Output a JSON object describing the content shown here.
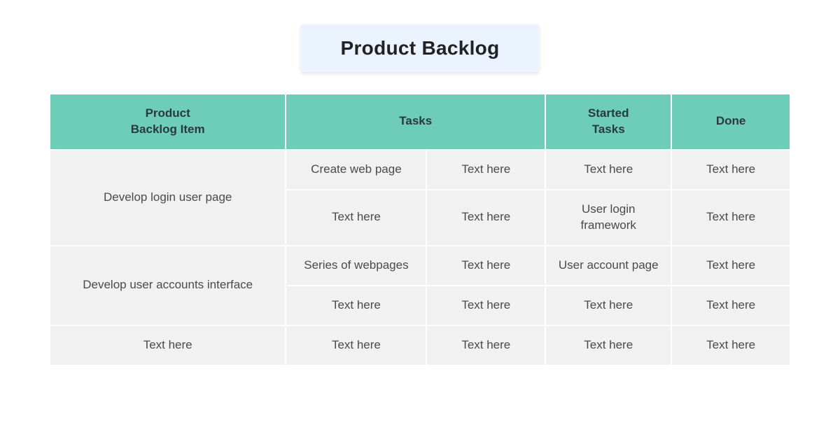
{
  "title": "Product Backlog",
  "colors": {
    "title_bg": "#eaf3ff",
    "title_text": "#222222",
    "header_bg": "#6dcdb8",
    "header_text": "#2a3a3a",
    "cell_bg": "#f1f1f1",
    "cell_text": "#4a4a4a",
    "page_bg": "#ffffff"
  },
  "typography": {
    "title_fontsize": 28,
    "header_fontsize": 17,
    "cell_fontsize": 17,
    "font_family": "Segoe UI"
  },
  "table": {
    "column_widths_pct": [
      32,
      19,
      16,
      17,
      16
    ],
    "headers": {
      "item": "Product\nBacklog Item",
      "tasks": "Tasks",
      "started": "Started\nTasks",
      "done": "Done"
    },
    "rows": [
      {
        "item": "Develop login user page",
        "item_rowspan": 2,
        "task1": "Create web page",
        "task2": "Text here",
        "started": "Text here",
        "done": "Text here"
      },
      {
        "task1": "Text here",
        "task2": "Text here",
        "started": "User login framework",
        "done": "Text here"
      },
      {
        "item": "Develop user accounts interface",
        "item_rowspan": 2,
        "task1": "Series of webpages",
        "task2": "Text here",
        "started": "User account page",
        "done": "Text here"
      },
      {
        "task1": "Text here",
        "task2": "Text here",
        "started": "Text here",
        "done": "Text here"
      },
      {
        "item": "Text here",
        "item_rowspan": 1,
        "task1": "Text here",
        "task2": "Text here",
        "started": "Text here",
        "done": "Text here"
      }
    ]
  }
}
